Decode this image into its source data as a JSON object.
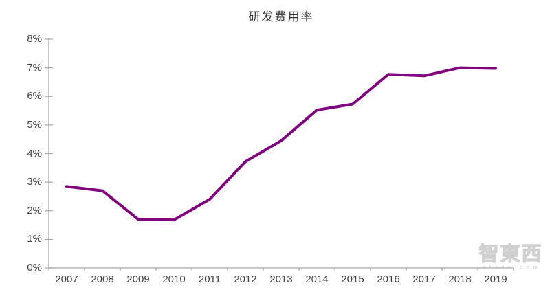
{
  "chart_data": {
    "type": "line",
    "title": "研发费用率",
    "categories": [
      "2007",
      "2008",
      "2009",
      "2010",
      "2011",
      "2012",
      "2013",
      "2014",
      "2015",
      "2016",
      "2017",
      "2018",
      "2019"
    ],
    "series": [
      {
        "name": "研发费用率",
        "color": "#800080",
        "values": [
          2.85,
          2.7,
          1.7,
          1.68,
          2.4,
          3.72,
          4.45,
          5.52,
          5.73,
          6.77,
          6.72,
          7.0,
          6.98
        ]
      }
    ],
    "ylim": [
      0,
      8
    ],
    "ytick_labels": [
      "0%",
      "1%",
      "2%",
      "3%",
      "4%",
      "5%",
      "6%",
      "7%",
      "8%"
    ],
    "xlabel": "",
    "ylabel": "",
    "grid": false,
    "legend_position": "none",
    "axis_color": "#a6a6a6",
    "label_color": "#404040"
  },
  "watermark": {
    "logo": "智東西",
    "subtext": "z h i d x . c o m"
  }
}
